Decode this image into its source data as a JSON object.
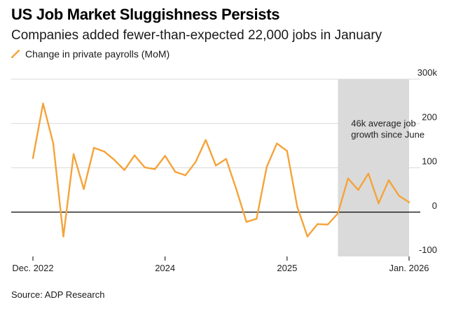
{
  "header": {
    "title": "US Job Market Sluggishness Persists",
    "subtitle": "Companies added fewer-than-expected 22,000 jobs in January"
  },
  "legend": {
    "label": "Change in private payrolls (MoM)"
  },
  "footer": {
    "source": "Source: ADP Research"
  },
  "colors": {
    "line": "#f5a33a",
    "shade": "#dadada",
    "grid": "#d9d9d9",
    "zero": "#000000"
  },
  "chart_data": {
    "type": "line",
    "title": "US Job Market Sluggishness Persists",
    "subtitle": "Companies added fewer-than-expected 22,000 jobs in January",
    "xlabel": "",
    "ylabel": "",
    "ylim": [
      -100,
      300
    ],
    "yticks": [
      -100,
      0,
      100,
      200,
      300
    ],
    "ytick_labels": [
      "-100",
      "0",
      "100",
      "200",
      "300k"
    ],
    "xticks": [
      {
        "index": 0,
        "label": "Dec. 2022"
      },
      {
        "index": 13,
        "label": "2024"
      },
      {
        "index": 25,
        "label": "2025"
      },
      {
        "index": 37,
        "label": "Jan. 2026"
      }
    ],
    "grid": true,
    "legend_position": "top-left",
    "series": [
      {
        "name": "Change in private payrolls (MoM)",
        "x": [
          "Dec 2022",
          "Jan 2023",
          "Feb 2023",
          "Mar 2023",
          "Apr 2023",
          "May 2023",
          "Jun 2023",
          "Jul 2023",
          "Aug 2023",
          "Sep 2023",
          "Oct 2023",
          "Nov 2023",
          "Dec 2023",
          "Jan 2024",
          "Feb 2024",
          "Mar 2024",
          "Apr 2024",
          "May 2024",
          "Jun 2024",
          "Jul 2024",
          "Aug 2024",
          "Sep 2024",
          "Oct 2024",
          "Nov 2024",
          "Dec 2024",
          "Jan 2025",
          "Feb 2025",
          "Mar 2025",
          "Apr 2025",
          "May 2025",
          "Jun 2025",
          "Jul 2025",
          "Aug 2025",
          "Sep 2025",
          "Oct 2025",
          "Nov 2025",
          "Dec 2025",
          "Jan 2026"
        ],
        "values": [
          122,
          245,
          155,
          -55,
          131,
          52,
          145,
          137,
          118,
          95,
          128,
          101,
          97,
          127,
          91,
          83,
          113,
          163,
          105,
          120,
          52,
          -22,
          -15,
          102,
          155,
          138,
          12,
          -55,
          -27,
          -28,
          -3,
          76,
          50,
          87,
          20,
          72,
          37,
          22
        ]
      }
    ],
    "shaded_region": {
      "from_index": 30,
      "to_index": 37
    },
    "annotations": [
      {
        "text_lines": [
          "46k average job",
          "growth since June"
        ],
        "index": 31.3,
        "y": 193
      }
    ]
  }
}
